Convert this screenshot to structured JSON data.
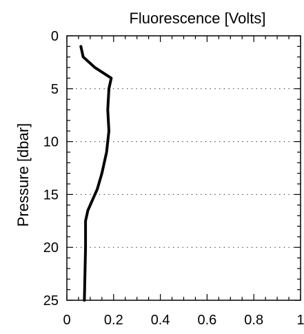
{
  "chart_data": {
    "type": "line",
    "title": "",
    "xlabel": "Fluorescence [Volts]",
    "ylabel": "Pressure [dbar]",
    "xlim": [
      0,
      1
    ],
    "ylim": [
      25,
      0
    ],
    "y_inverted": true,
    "x_axis_position": "top-label-bottom-ticks",
    "x_ticks": [
      0,
      0.2,
      0.4,
      0.6,
      0.8,
      1
    ],
    "x_tick_labels": [
      "0",
      "0.2",
      "0.4",
      "0.6",
      "0.8",
      "1"
    ],
    "y_ticks": [
      0,
      5,
      10,
      15,
      20,
      25
    ],
    "y_tick_labels": [
      "0",
      "5",
      "10",
      "15",
      "20",
      "25"
    ],
    "grid": "horizontal dotted at y ticks",
    "series": [
      {
        "color": "#000000",
        "points": [
          {
            "x": 0.06,
            "y": 1.0
          },
          {
            "x": 0.07,
            "y": 2.0
          },
          {
            "x": 0.1,
            "y": 2.6
          },
          {
            "x": 0.12,
            "y": 3.0
          },
          {
            "x": 0.19,
            "y": 4.0
          },
          {
            "x": 0.18,
            "y": 5.0
          },
          {
            "x": 0.175,
            "y": 7.0
          },
          {
            "x": 0.18,
            "y": 9.0
          },
          {
            "x": 0.17,
            "y": 11.0
          },
          {
            "x": 0.16,
            "y": 12.0
          },
          {
            "x": 0.15,
            "y": 13.0
          },
          {
            "x": 0.13,
            "y": 14.5
          },
          {
            "x": 0.11,
            "y": 15.5
          },
          {
            "x": 0.09,
            "y": 16.5
          },
          {
            "x": 0.08,
            "y": 17.5
          },
          {
            "x": 0.08,
            "y": 20.0
          },
          {
            "x": 0.075,
            "y": 25.0
          }
        ]
      }
    ]
  }
}
